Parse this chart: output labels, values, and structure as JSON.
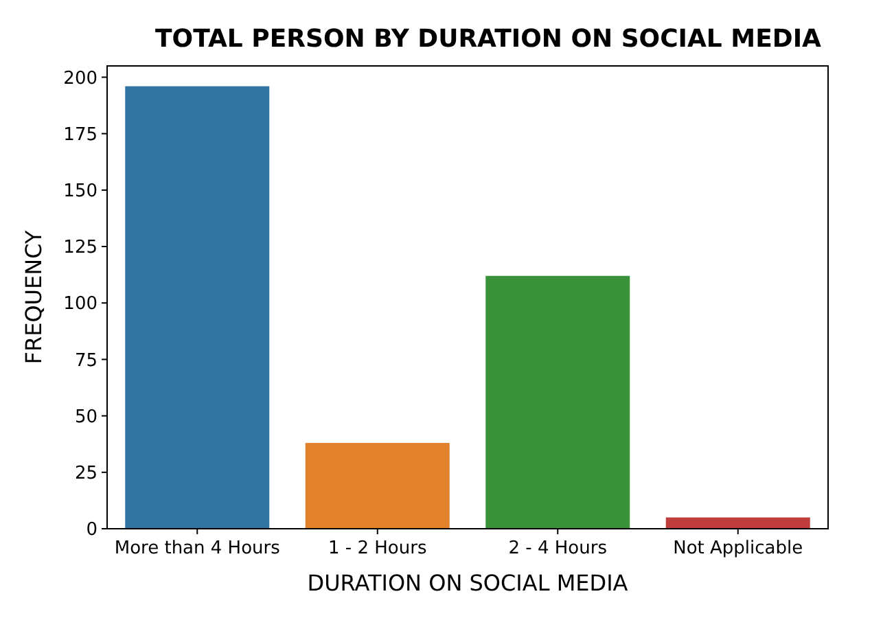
{
  "chart_data": {
    "type": "bar",
    "title": "TOTAL PERSON BY DURATION ON SOCIAL MEDIA",
    "xlabel": "DURATION ON SOCIAL MEDIA",
    "ylabel": "FREQUENCY",
    "categories": [
      "More than 4 Hours",
      "1 - 2 Hours",
      "2 - 4 Hours",
      "Not Applicable"
    ],
    "values": [
      196,
      38,
      112,
      5
    ],
    "colors": [
      "#3274a1",
      "#e1812c",
      "#3a923a",
      "#c03d3e"
    ],
    "ylim": [
      0,
      205
    ],
    "yticks": [
      0,
      25,
      50,
      75,
      100,
      125,
      150,
      175,
      200
    ],
    "grid": false
  }
}
